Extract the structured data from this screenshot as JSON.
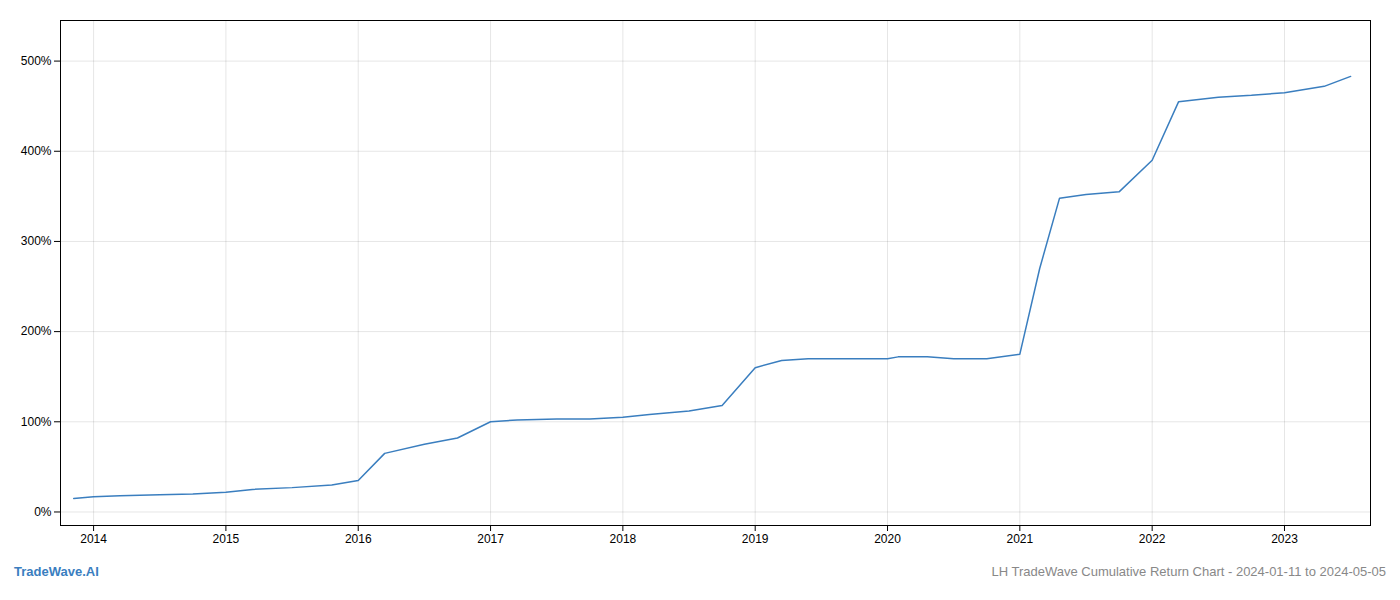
{
  "chart_data": {
    "type": "line",
    "title": "LH TradeWave Cumulative Return Chart - 2024-01-11 to 2024-05-05",
    "annotations": [
      "TradeWave.AI"
    ],
    "color": "#3a7ebf",
    "grid": true,
    "x": [
      2013.85,
      2014.0,
      2014.2,
      2014.5,
      2014.75,
      2015.0,
      2015.2,
      2015.5,
      2015.8,
      2016.0,
      2016.2,
      2016.5,
      2016.75,
      2017.0,
      2017.2,
      2017.5,
      2017.75,
      2018.0,
      2018.2,
      2018.5,
      2018.75,
      2019.0,
      2019.2,
      2019.4,
      2019.6,
      2019.8,
      2020.0,
      2020.08,
      2020.3,
      2020.5,
      2020.75,
      2021.0,
      2021.15,
      2021.3,
      2021.5,
      2021.75,
      2022.0,
      2022.2,
      2022.5,
      2022.75,
      2023.0,
      2023.3,
      2023.5
    ],
    "values": [
      15,
      17,
      18,
      19,
      20,
      22,
      25,
      27,
      30,
      35,
      65,
      75,
      82,
      100,
      102,
      103,
      103,
      105,
      108,
      112,
      118,
      160,
      168,
      170,
      170,
      170,
      170,
      172,
      172,
      170,
      170,
      175,
      270,
      348,
      352,
      355,
      390,
      455,
      460,
      462,
      465,
      472,
      483
    ],
    "xlim": [
      2013.75,
      2023.65
    ],
    "xticks": [
      2014,
      2015,
      2016,
      2017,
      2018,
      2019,
      2020,
      2021,
      2022,
      2023
    ],
    "ylim": [
      -15,
      545
    ],
    "yticks": [
      {
        "value": 0,
        "label": "0%"
      },
      {
        "value": 100,
        "label": "100%"
      },
      {
        "value": 200,
        "label": "200%"
      },
      {
        "value": 300,
        "label": "300%"
      },
      {
        "value": 400,
        "label": "400%"
      },
      {
        "value": 500,
        "label": "500%"
      }
    ]
  }
}
